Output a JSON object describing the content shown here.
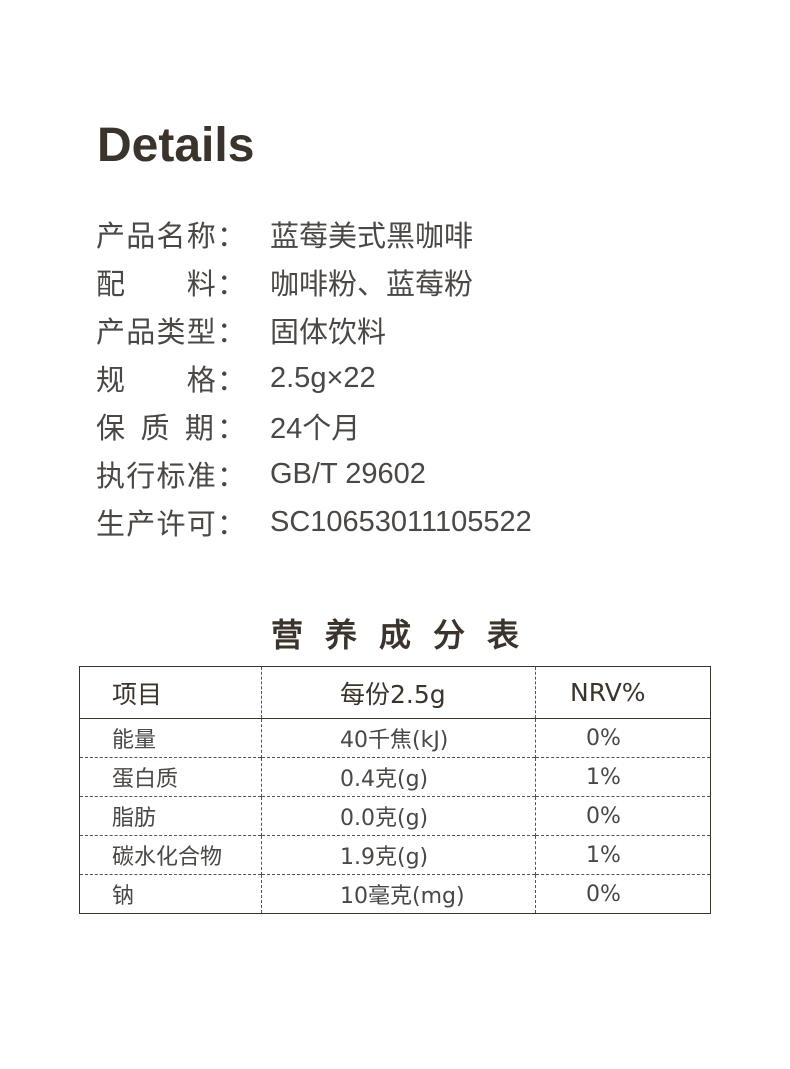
{
  "details": {
    "title": "Details",
    "specs": [
      {
        "label": "产品名称：",
        "value": "蓝莓美式黑咖啡"
      },
      {
        "label": "配　　料：",
        "value": "咖啡粉、蓝莓粉"
      },
      {
        "label": "产品类型：",
        "value": "固体饮料"
      },
      {
        "label": "规　　格：",
        "value": "2.5g×22"
      },
      {
        "label": "保 质 期：",
        "value": "24个月"
      },
      {
        "label": "执行标准：",
        "value": "GB/T 29602"
      },
      {
        "label": "生产许可：",
        "value": "SC10653011105522"
      }
    ]
  },
  "nutrition": {
    "title": "营养成分表",
    "headers": [
      "项目",
      "每份2.5g",
      "NRV%"
    ],
    "rows": [
      [
        "能量",
        "40千焦(kJ)",
        "0%"
      ],
      [
        "蛋白质",
        "0.4克(g)",
        "1%"
      ],
      [
        "脂肪",
        "0.0克(g)",
        "0%"
      ],
      [
        "碳水化合物",
        "1.9克(g)",
        "1%"
      ],
      [
        "钠",
        "10毫克(mg)",
        "0%"
      ]
    ]
  }
}
